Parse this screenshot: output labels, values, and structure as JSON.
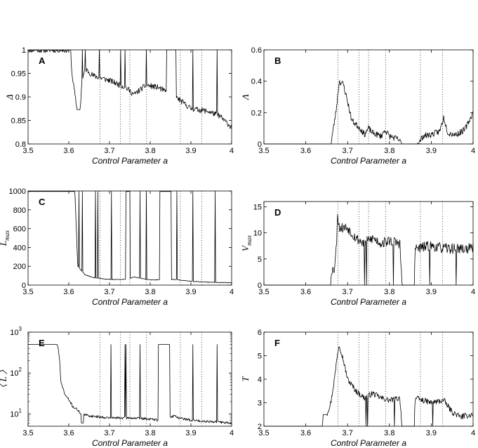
{
  "chart_data": [
    {
      "id": "A",
      "type": "line",
      "panel_label": "A",
      "xlabel": "Control Parameter a",
      "ylabel": "Δ",
      "xlim": [
        3.5,
        4.0
      ],
      "ylim": [
        0.8,
        1.0
      ],
      "yscale": "linear",
      "xticks": [
        "3.5",
        "3.6",
        "3.7",
        "3.8",
        "3.9",
        "4"
      ],
      "yticks": [
        {
          "v": 0.8,
          "t": "0.8"
        },
        {
          "v": 0.85,
          "t": "0.85"
        },
        {
          "v": 0.9,
          "t": "0.9"
        },
        {
          "v": 0.95,
          "t": "0.95"
        },
        {
          "v": 1.0,
          "t": "1"
        }
      ],
      "vlines": [
        3.677,
        3.727,
        3.75,
        3.791,
        3.874,
        3.927
      ],
      "noise": 0.006,
      "seed": 11,
      "keypoints": [
        [
          3.5,
          1.0
        ],
        [
          3.605,
          1.0
        ],
        [
          3.607,
          0.955
        ],
        [
          3.615,
          0.905
        ],
        [
          3.62,
          0.873
        ],
        [
          3.628,
          0.873
        ],
        [
          3.632,
          0.93
        ],
        [
          3.64,
          0.96
        ],
        [
          3.66,
          0.945
        ],
        [
          3.7,
          0.935
        ],
        [
          3.74,
          0.92
        ],
        [
          3.76,
          0.905
        ],
        [
          3.79,
          0.925
        ],
        [
          3.82,
          0.92
        ],
        [
          3.83,
          0.915
        ],
        [
          3.87,
          0.895
        ],
        [
          3.9,
          0.875
        ],
        [
          3.94,
          0.87
        ],
        [
          3.97,
          0.86
        ],
        [
          4.0,
          0.835
        ]
      ],
      "flat": [
        [
          3.62,
          3.628,
          0.873
        ],
        [
          3.84,
          3.863,
          1.0
        ]
      ],
      "spikes": [
        [
          3.633,
          1.0
        ],
        [
          3.641,
          1.0
        ],
        [
          3.675,
          1.0
        ],
        [
          3.727,
          1.0
        ],
        [
          3.738,
          1.0
        ],
        [
          3.79,
          1.0
        ],
        [
          3.84,
          1.0
        ],
        [
          3.863,
          1.0
        ],
        [
          3.905,
          1.0
        ],
        [
          3.964,
          1.0
        ]
      ]
    },
    {
      "id": "B",
      "type": "line",
      "panel_label": "B",
      "xlabel": "Control Parameter a",
      "ylabel": "Λ",
      "xlim": [
        3.5,
        4.0
      ],
      "ylim": [
        0,
        0.6
      ],
      "yscale": "linear",
      "xticks": [
        "3.5",
        "3.6",
        "3.7",
        "3.8",
        "3.9",
        "4"
      ],
      "yticks": [
        {
          "v": 0,
          "t": "0"
        },
        {
          "v": 0.2,
          "t": "0.2"
        },
        {
          "v": 0.4,
          "t": "0.4"
        },
        {
          "v": 0.6,
          "t": "0.6"
        }
      ],
      "vlines": [
        3.677,
        3.727,
        3.75,
        3.791,
        3.874,
        3.927
      ],
      "noise": 0.02,
      "seed": 23,
      "keypoints": [
        [
          3.5,
          0
        ],
        [
          3.66,
          0
        ],
        [
          3.672,
          0.2
        ],
        [
          3.68,
          0.4
        ],
        [
          3.69,
          0.38
        ],
        [
          3.7,
          0.27
        ],
        [
          3.71,
          0.15
        ],
        [
          3.73,
          0.1
        ],
        [
          3.74,
          0.06
        ],
        [
          3.75,
          0.1
        ],
        [
          3.76,
          0.07
        ],
        [
          3.78,
          0.05
        ],
        [
          3.79,
          0.09
        ],
        [
          3.8,
          0.05
        ],
        [
          3.82,
          0.03
        ],
        [
          3.83,
          0
        ],
        [
          3.87,
          0
        ],
        [
          3.88,
          0.05
        ],
        [
          3.9,
          0.06
        ],
        [
          3.92,
          0.08
        ],
        [
          3.93,
          0.17
        ],
        [
          3.94,
          0.07
        ],
        [
          3.96,
          0.06
        ],
        [
          3.98,
          0.09
        ],
        [
          4.0,
          0.2
        ]
      ],
      "flat": [
        [
          3.5,
          3.66,
          0
        ],
        [
          3.83,
          3.86,
          0
        ]
      ],
      "spikes": []
    },
    {
      "id": "C",
      "type": "line",
      "panel_label": "C",
      "xlabel": "Control Parameter a",
      "ylabel": "L",
      "ylabel_sub": "max",
      "xlim": [
        3.5,
        4.0
      ],
      "ylim": [
        0,
        1000
      ],
      "yscale": "linear",
      "xticks": [
        "3.5",
        "3.6",
        "3.7",
        "3.8",
        "3.9",
        "4"
      ],
      "yticks": [
        {
          "v": 0,
          "t": "0"
        },
        {
          "v": 200,
          "t": "200"
        },
        {
          "v": 400,
          "t": "400"
        },
        {
          "v": 600,
          "t": "600"
        },
        {
          "v": 800,
          "t": "800"
        },
        {
          "v": 1000,
          "t": "1000"
        }
      ],
      "vlines": [
        3.677,
        3.727,
        3.75,
        3.791,
        3.874,
        3.927
      ],
      "noise": 3,
      "seed": 37,
      "keypoints": [
        [
          3.5,
          995
        ],
        [
          3.615,
          995
        ],
        [
          3.622,
          200
        ],
        [
          3.64,
          110
        ],
        [
          3.66,
          80
        ],
        [
          3.7,
          60
        ],
        [
          3.74,
          60
        ],
        [
          3.76,
          85
        ],
        [
          3.8,
          55
        ],
        [
          3.86,
          60
        ],
        [
          3.9,
          40
        ],
        [
          3.95,
          30
        ],
        [
          4.0,
          25
        ]
      ],
      "flat": [
        [
          3.5,
          3.615,
          995
        ],
        [
          3.74,
          3.75,
          995
        ],
        [
          3.823,
          3.852,
          995
        ]
      ],
      "spikes": [
        [
          3.625,
          995
        ],
        [
          3.633,
          995
        ],
        [
          3.665,
          995
        ],
        [
          3.672,
          995
        ],
        [
          3.705,
          995
        ],
        [
          3.775,
          995
        ],
        [
          3.79,
          995
        ],
        [
          3.865,
          995
        ],
        [
          3.905,
          995
        ],
        [
          3.96,
          995
        ]
      ]
    },
    {
      "id": "D",
      "type": "line",
      "panel_label": "D",
      "xlabel": "Control Parameter a",
      "ylabel": "V",
      "ylabel_sub": "max",
      "xlim": [
        3.5,
        4.0
      ],
      "ylim": [
        0,
        16
      ],
      "yscale": "linear",
      "xticks": [
        "3.5",
        "3.6",
        "3.7",
        "3.8",
        "3.9",
        "4"
      ],
      "yticks": [
        {
          "v": 0,
          "t": "0"
        },
        {
          "v": 5,
          "t": "5"
        },
        {
          "v": 10,
          "t": "10"
        },
        {
          "v": 15,
          "t": "15"
        }
      ],
      "vlines": [
        3.677,
        3.727,
        3.75,
        3.791,
        3.874,
        3.927
      ],
      "noise": 1.0,
      "seed": 53,
      "keypoints": [
        [
          3.5,
          0
        ],
        [
          3.66,
          0
        ],
        [
          3.661,
          3
        ],
        [
          3.668,
          3
        ],
        [
          3.673,
          7
        ],
        [
          3.676,
          14
        ],
        [
          3.68,
          11
        ],
        [
          3.7,
          11
        ],
        [
          3.72,
          9
        ],
        [
          3.74,
          8
        ],
        [
          3.76,
          9
        ],
        [
          3.78,
          8
        ],
        [
          3.8,
          8.5
        ],
        [
          3.825,
          8
        ],
        [
          3.83,
          0
        ],
        [
          3.86,
          0
        ],
        [
          3.861,
          7
        ],
        [
          3.9,
          7.5
        ],
        [
          3.93,
          7
        ],
        [
          3.96,
          7
        ],
        [
          4.0,
          7
        ]
      ],
      "flat": [
        [
          3.5,
          3.66,
          0
        ],
        [
          3.83,
          3.86,
          0
        ]
      ],
      "spikes": [
        [
          3.74,
          0
        ],
        [
          3.745,
          0
        ],
        [
          3.81,
          0
        ],
        [
          3.897,
          0
        ],
        [
          3.96,
          0
        ]
      ]
    },
    {
      "id": "E",
      "type": "line",
      "panel_label": "E",
      "xlabel": "Control Parameter a",
      "ylabel": "〈 L 〉",
      "xlim": [
        3.5,
        4.0
      ],
      "ylim": [
        5,
        1000
      ],
      "yscale": "log",
      "xticks": [
        "3.5",
        "3.6",
        "3.7",
        "3.8",
        "3.9",
        "4"
      ],
      "yticks": [
        {
          "v": 10,
          "t": "10",
          "sup": "1"
        },
        {
          "v": 100,
          "t": "10",
          "sup": "2"
        },
        {
          "v": 1000,
          "t": "10",
          "sup": "3"
        }
      ],
      "vlines": [
        3.677,
        3.727,
        3.75,
        3.791,
        3.874,
        3.927
      ],
      "noise": 0.03,
      "seed": 71,
      "keypoints": [
        [
          3.5,
          500
        ],
        [
          3.572,
          500
        ],
        [
          3.58,
          60
        ],
        [
          3.59,
          30
        ],
        [
          3.6,
          22
        ],
        [
          3.61,
          15
        ],
        [
          3.62,
          13
        ],
        [
          3.63,
          10
        ],
        [
          3.65,
          9
        ],
        [
          3.7,
          8
        ],
        [
          3.75,
          8
        ],
        [
          3.8,
          7.5
        ],
        [
          3.82,
          7
        ],
        [
          3.86,
          9
        ],
        [
          3.87,
          8
        ],
        [
          3.9,
          7
        ],
        [
          3.95,
          6.5
        ],
        [
          4.0,
          6
        ]
      ],
      "flat": [
        [
          3.5,
          3.572,
          500
        ],
        [
          3.63,
          3.636,
          6
        ],
        [
          3.82,
          3.848,
          500
        ]
      ],
      "spikes": [
        [
          3.704,
          500
        ],
        [
          3.738,
          500
        ],
        [
          3.741,
          500
        ],
        [
          3.775,
          500
        ],
        [
          3.905,
          500
        ],
        [
          3.964,
          500
        ]
      ]
    },
    {
      "id": "F",
      "type": "line",
      "panel_label": "F",
      "xlabel": "Control Parameter a",
      "ylabel": "T",
      "xlim": [
        3.5,
        4.0
      ],
      "ylim": [
        2,
        6
      ],
      "yscale": "linear",
      "xticks": [
        "3.5",
        "3.6",
        "3.7",
        "3.8",
        "3.9",
        "4"
      ],
      "yticks": [
        {
          "v": 2,
          "t": "2"
        },
        {
          "v": 3,
          "t": "3"
        },
        {
          "v": 4,
          "t": "4"
        },
        {
          "v": 5,
          "t": "5"
        },
        {
          "v": 6,
          "t": "6"
        }
      ],
      "vlines": [
        3.677,
        3.727,
        3.75,
        3.791,
        3.874,
        3.927
      ],
      "noise": 0.12,
      "seed": 97,
      "keypoints": [
        [
          3.5,
          2
        ],
        [
          3.64,
          2
        ],
        [
          3.641,
          2.5
        ],
        [
          3.65,
          2.5
        ],
        [
          3.66,
          3.0
        ],
        [
          3.67,
          4.2
        ],
        [
          3.675,
          5.0
        ],
        [
          3.68,
          5.5
        ],
        [
          3.69,
          4.8
        ],
        [
          3.7,
          4.0
        ],
        [
          3.72,
          3.5
        ],
        [
          3.74,
          3.2
        ],
        [
          3.76,
          3.4
        ],
        [
          3.78,
          3.2
        ],
        [
          3.8,
          3.1
        ],
        [
          3.825,
          3.2
        ],
        [
          3.83,
          2
        ],
        [
          3.86,
          2
        ],
        [
          3.861,
          3.2
        ],
        [
          3.9,
          3.0
        ],
        [
          3.93,
          3.1
        ],
        [
          3.95,
          2.6
        ],
        [
          3.97,
          2.4
        ],
        [
          4.0,
          2.5
        ]
      ],
      "flat": [
        [
          3.5,
          3.64,
          2
        ],
        [
          3.641,
          3.65,
          2.5
        ],
        [
          3.83,
          3.86,
          2
        ]
      ],
      "spikes": [
        [
          3.744,
          2
        ],
        [
          3.748,
          2
        ],
        [
          3.812,
          2
        ],
        [
          3.904,
          2
        ]
      ]
    }
  ]
}
